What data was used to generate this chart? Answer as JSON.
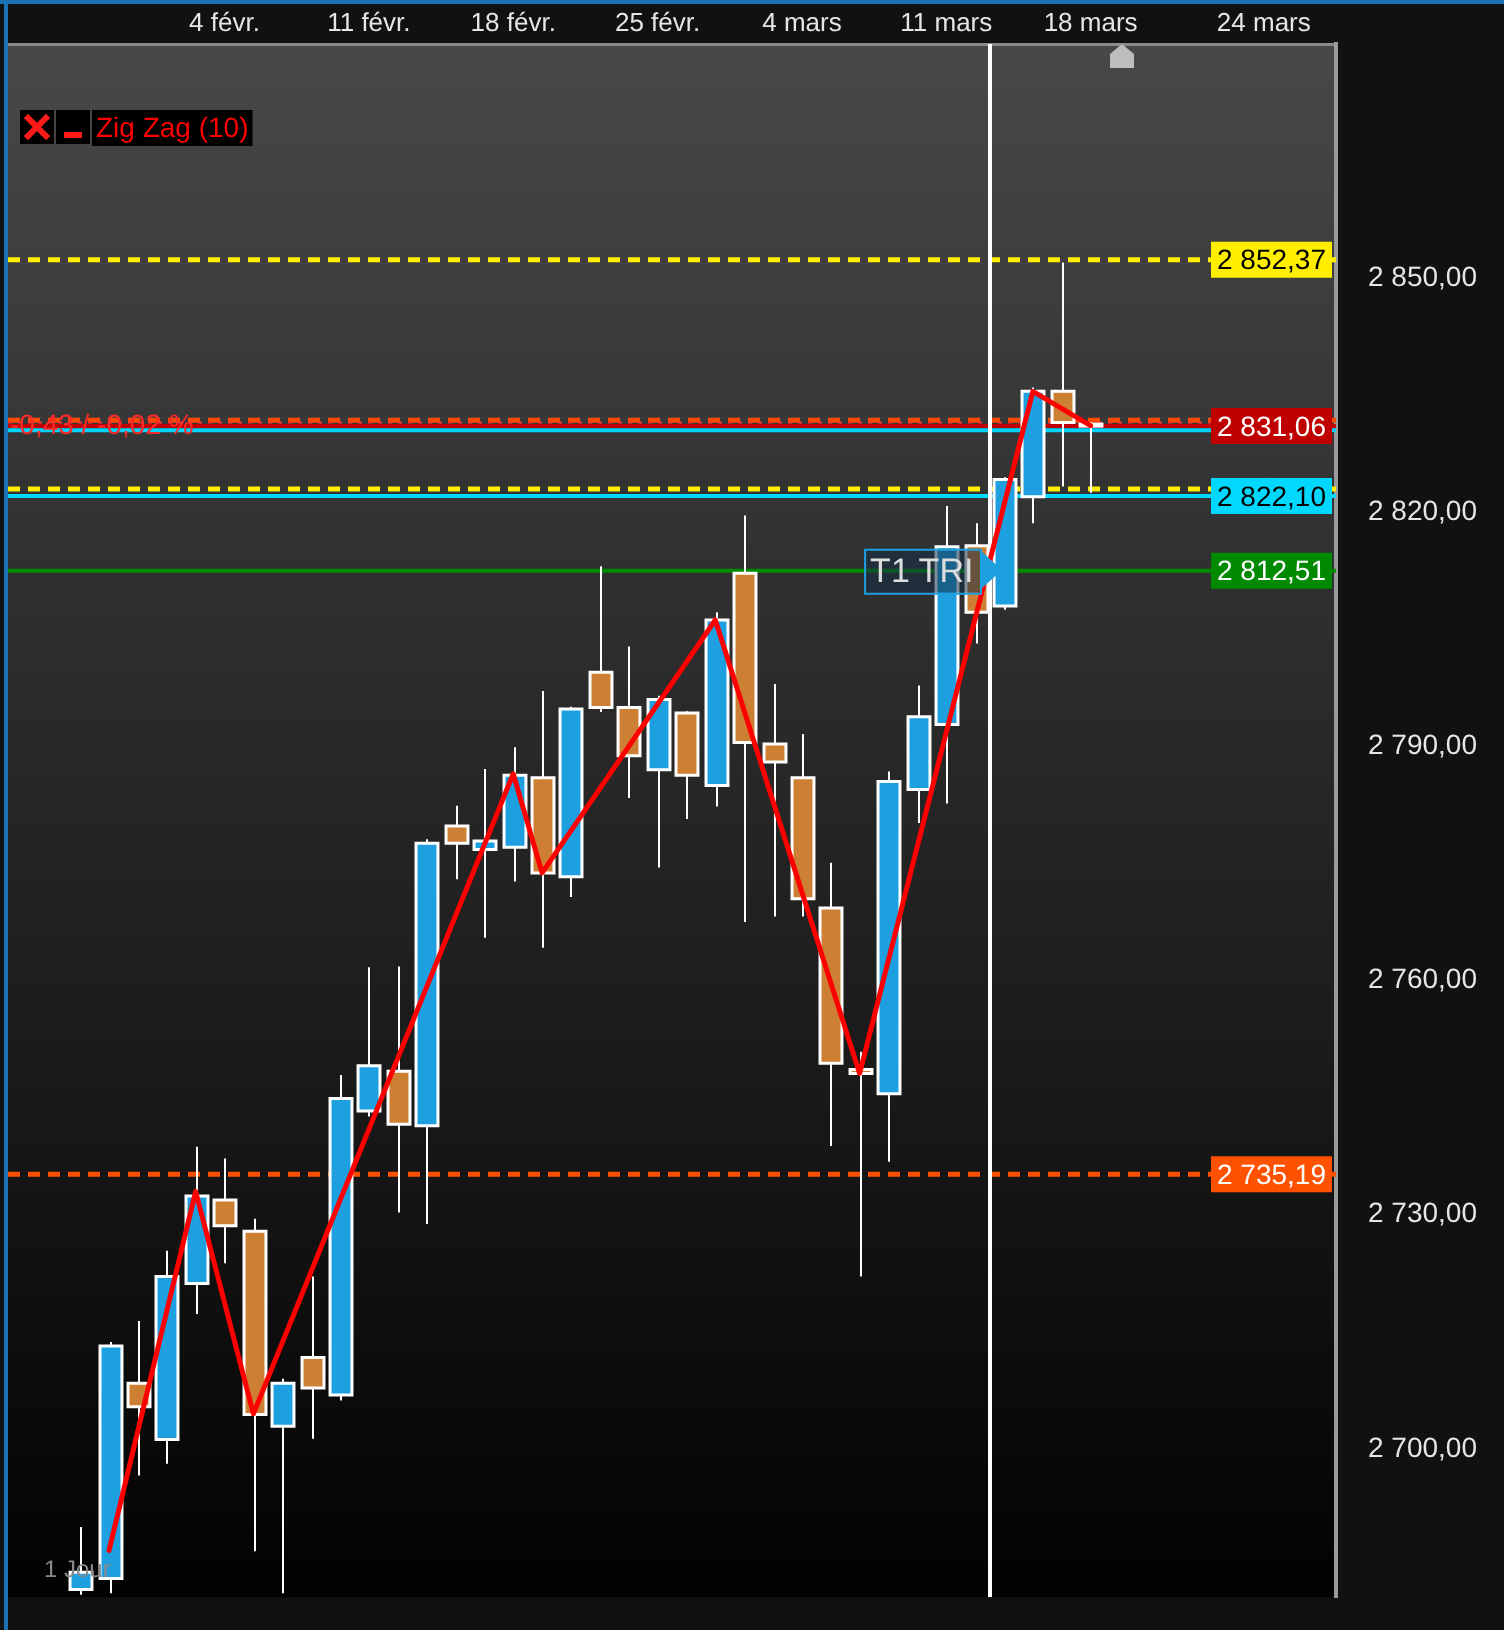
{
  "chart_data": {
    "type": "candlestick",
    "categories": [
      null,
      null,
      null,
      null,
      null,
      null,
      null,
      "4 févr.",
      null,
      null,
      null,
      null,
      "11 févr.",
      null,
      null,
      null,
      null,
      "18 févr.",
      null,
      null,
      null,
      null,
      "25 févr.",
      null,
      null,
      null,
      null,
      "4 mars",
      null,
      null,
      null,
      null,
      "11 mars",
      null,
      null,
      null,
      null,
      "18 mars",
      null,
      null,
      null,
      null,
      null,
      "24 mars",
      null,
      null
    ],
    "series": [
      {
        "ohlc": [
          null,
          null,
          [
            2682.0,
            2690.0,
            2681.3,
            2684.2
          ],
          [
            2683.4,
            2713.7,
            2681.5,
            2713.2
          ],
          [
            2708.4,
            2716.4,
            2696.6,
            2705.4
          ],
          [
            2701.2,
            2725.4,
            2698.1,
            2722.1
          ],
          [
            2721.2,
            2738.7,
            2717.3,
            2732.4
          ],
          [
            2731.9,
            2737.2,
            2723.8,
            2728.6
          ],
          [
            2727.9,
            2729.5,
            2686.9,
            2704.4
          ],
          [
            2702.9,
            2709.0,
            2681.5,
            2708.4
          ],
          [
            2711.7,
            2722.1,
            2701.3,
            2707.8
          ],
          [
            2706.9,
            2747.9,
            2706.2,
            2744.9
          ],
          [
            2743.3,
            2761.7,
            2742.6,
            2749.1
          ],
          [
            2748.4,
            2761.8,
            2730.3,
            2741.6
          ],
          [
            2741.4,
            2778.1,
            2728.8,
            2777.6
          ],
          [
            2779.8,
            2782.4,
            2773.0,
            2777.6
          ],
          [
            2776.8,
            2787.1,
            2765.5,
            2777.9
          ],
          [
            2777.1,
            2789.9,
            2772.7,
            2786.3
          ],
          [
            2786.0,
            2797.1,
            2764.2,
            2773.8
          ],
          [
            2773.3,
            2795.1,
            2770.7,
            2794.8
          ],
          [
            2799.5,
            2813.1,
            2794.4,
            2795.0
          ],
          [
            2795.0,
            2802.8,
            2783.4,
            2788.8
          ],
          [
            2787.0,
            2796.5,
            2774.5,
            2796.0
          ],
          [
            2794.3,
            2794.5,
            2780.7,
            2786.3
          ],
          [
            2785.0,
            2807.2,
            2782.3,
            2806.2
          ],
          [
            2812.2,
            2819.6,
            2767.5,
            2790.5
          ],
          [
            2790.3,
            2798.0,
            2768.2,
            2788.0
          ],
          [
            2786.0,
            2791.6,
            2768.2,
            2770.5
          ],
          [
            2769.3,
            2775.1,
            2738.8,
            2749.4
          ],
          [
            2748.6,
            2750.9,
            2722.1,
            2748.1
          ],
          [
            2745.5,
            2786.8,
            2736.8,
            2785.5
          ],
          [
            2784.5,
            2797.8,
            2780.2,
            2793.8
          ],
          [
            2792.8,
            2820.8,
            2782.7,
            2815.6
          ],
          [
            2815.7,
            2818.6,
            2803.2,
            2807.2
          ],
          [
            2808.0,
            2824.5,
            2807.5,
            2824.2
          ],
          [
            2822.0,
            2836.0,
            2818.6,
            2835.5
          ],
          [
            2835.5,
            2852.0,
            2823.3,
            2831.5
          ],
          [
            2831.3,
            2831.5,
            2822.5,
            2831.1
          ],
          null,
          null,
          null,
          null,
          null,
          null,
          null,
          null
        ],
        "colors": [
          null,
          null,
          "#1ea0e0",
          "#1ea0e0",
          "#cd8034",
          "#1ea0e0",
          "#1ea0e0",
          "#cd8034",
          "#cd8034",
          "#1ea0e0",
          "#cd8034",
          "#1ea0e0",
          "#1ea0e0",
          "#cd8034",
          "#1ea0e0",
          "#cd8034",
          "#1ea0e0",
          "#1ea0e0",
          "#cd8034",
          "#1ea0e0",
          "#cd8034",
          "#cd8034",
          "#1ea0e0",
          "#cd8034",
          "#1ea0e0",
          "#cd8034",
          "#cd8034",
          "#cd8034",
          "#cd8034",
          "#cd8034",
          "#1ea0e0",
          "#1ea0e0",
          "#1ea0e0",
          "#cd8034",
          "#1ea0e0",
          "#1ea0e0",
          "#cd8034",
          "#cd8034",
          null,
          null,
          null,
          null,
          null,
          null,
          null,
          null
        ]
      },
      {
        "type": "line",
        "name": "Zig Zag (10)",
        "color": "#ff0000",
        "values": [
          null,
          null,
          null,
          2687.0,
          null,
          null,
          2733.0,
          null,
          2704.5,
          null,
          null,
          null,
          null,
          null,
          null,
          null,
          null,
          2786.5,
          2773.8,
          null,
          null,
          null,
          null,
          null,
          2806.2,
          null,
          null,
          null,
          null,
          2748.1,
          null,
          null,
          null,
          null,
          null,
          2835.5,
          null,
          2831.1,
          null,
          null,
          null,
          null,
          null,
          null,
          null,
          null
        ]
      }
    ],
    "ylim": [
      2681,
      2880
    ],
    "yticks": [
      {
        "value": 2700,
        "label": "2 700,00"
      },
      {
        "value": 2730,
        "label": "2 730,00"
      },
      {
        "value": 2760,
        "label": "2 760,00"
      },
      {
        "value": 2790,
        "label": "2 790,00"
      },
      {
        "value": 2820,
        "label": "2 820,00"
      },
      {
        "value": 2850,
        "label": "2 850,00"
      }
    ],
    "ref_lines": [
      {
        "axis": "y",
        "value": 2852.37,
        "label": "2 852,37",
        "color": "#ffee00",
        "line_style": "dashed"
      },
      {
        "axis": "y",
        "value": 2831.8,
        "color": "#ff4a00",
        "line_style": "dashed"
      },
      {
        "axis": "y",
        "value": 2831.49,
        "color": "#ff3030",
        "line_style": "dotted"
      },
      {
        "axis": "y",
        "value": 2831.06,
        "label": "2 831,06",
        "color": "#c00000",
        "line_style": "solid"
      },
      {
        "axis": "y",
        "value": 2830.5,
        "color": "#00d4ff",
        "line_style": "solid"
      },
      {
        "axis": "y",
        "value": 2823.0,
        "color": "#ffee00",
        "line_style": "dashed"
      },
      {
        "axis": "y",
        "value": 2822.1,
        "label": "2 822,10",
        "color": "#00d8ff",
        "line_style": "solid"
      },
      {
        "axis": "y",
        "value": 2812.51,
        "label": "2 812,51",
        "color": "#008a00",
        "line_style": "solid"
      },
      {
        "axis": "y",
        "value": 2735.19,
        "label": "2 735,19",
        "color": "#ff5200",
        "line_style": "dashed"
      }
    ],
    "annotations": [
      {
        "text": "-0,43 / -0,02 %",
        "y": 2831.06
      },
      {
        "text": "T1 TRI",
        "y": 2812.51
      },
      "1 Jour"
    ],
    "grid": false,
    "legend": "top left"
  }
}
